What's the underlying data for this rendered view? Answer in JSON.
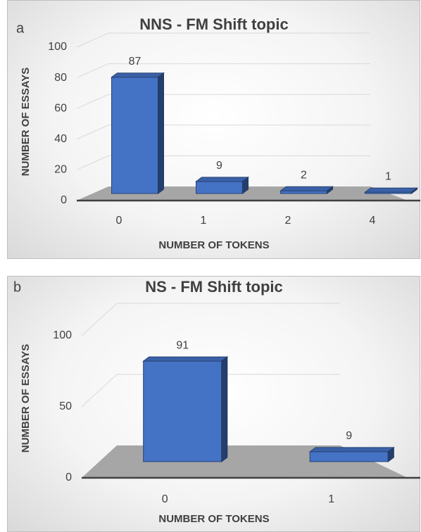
{
  "chart_data": [
    {
      "type": "bar3d",
      "panel_label": "a",
      "title": "NNS - FM Shift topic",
      "x_label": "NUMBER OF TOKENS",
      "y_label": "NUMBER OF ESSAYS",
      "categories": [
        "0",
        "1",
        "2",
        "4"
      ],
      "values": [
        87,
        9,
        2,
        1
      ],
      "color": "#4472c4",
      "ylim": [
        0,
        100
      ],
      "yticks": [
        0,
        20,
        40,
        60,
        80,
        100
      ],
      "grid": true
    },
    {
      "type": "bar3d",
      "panel_label": "b",
      "title": "NS - FM Shift topic",
      "x_label": "NUMBER OF TOKENS",
      "y_label": "NUMBER OF ESSAYS",
      "categories": [
        "0",
        "1"
      ],
      "values": [
        91,
        9
      ],
      "color": "#4472c4",
      "ylim": [
        0,
        100
      ],
      "yticks": [
        0,
        50,
        100
      ],
      "grid": true
    }
  ]
}
